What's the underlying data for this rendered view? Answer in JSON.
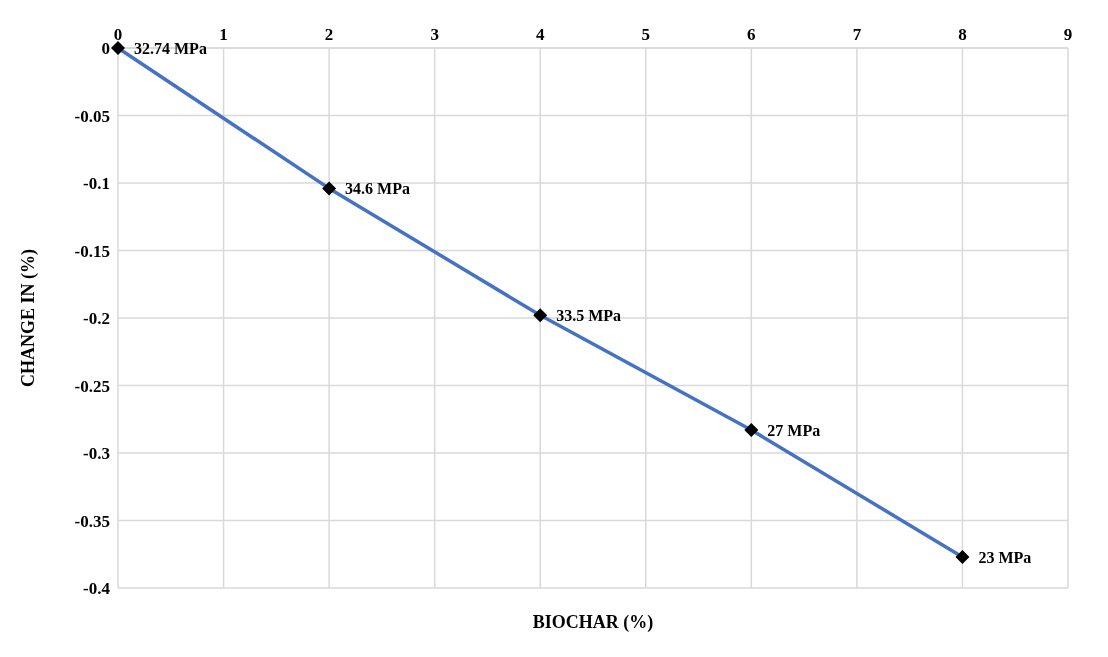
{
  "chart_data": {
    "type": "line",
    "xlabel": "BIOCHAR (%)",
    "ylabel": "CHANGE IN (%)",
    "x": [
      0,
      2,
      4,
      6,
      8
    ],
    "series": [
      {
        "color": "#4472c4",
        "values": [
          0,
          -0.104,
          -0.198,
          -0.283,
          -0.377
        ]
      }
    ],
    "annotations": [
      {
        "text": "32.74 MPa",
        "x": 0,
        "y": 0
      },
      {
        "text": "34.6 MPa",
        "x": 2,
        "y": -0.104
      },
      {
        "text": "33.5 MPa",
        "x": 4,
        "y": -0.198
      },
      {
        "text": "27 MPa",
        "x": 6,
        "y": -0.283
      },
      {
        "text": "23 MPa",
        "x": 8,
        "y": -0.377
      }
    ],
    "xlim": [
      0,
      9
    ],
    "xticks": [
      0,
      1,
      2,
      3,
      4,
      5,
      6,
      7,
      8,
      9
    ],
    "ylim": [
      -0.4,
      0
    ],
    "yticks": [
      0,
      -0.05,
      -0.1,
      -0.15,
      -0.2,
      -0.25,
      -0.3,
      -0.35,
      -0.4
    ],
    "grid": true,
    "legend": false,
    "marker": "diamond",
    "line_style": "solid"
  }
}
